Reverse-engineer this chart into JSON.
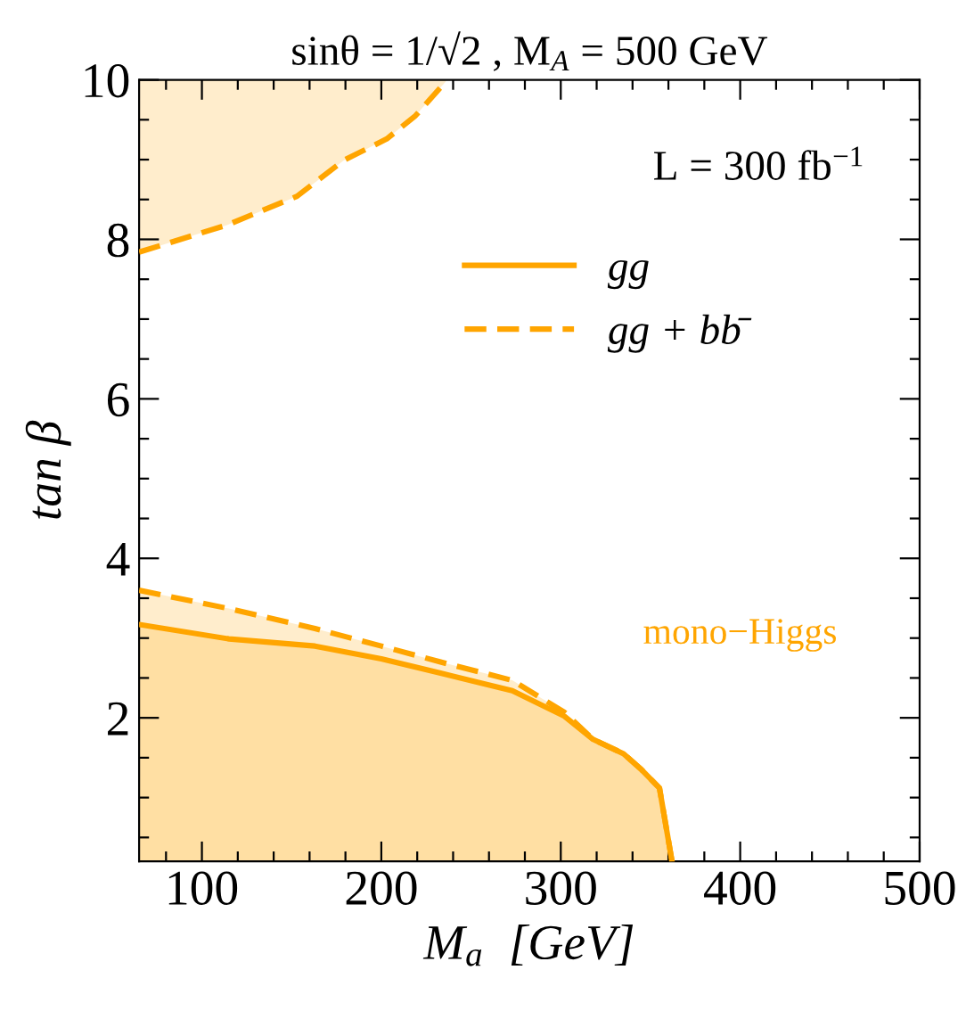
{
  "chart_data": {
    "type": "area",
    "title": "sinθ = 1/√2 , M$_{A}$ = 500 GeV",
    "xlabel": "M$_{a}$  [GeV]",
    "ylabel": "tan β",
    "series": [
      {
        "type": "line",
        "color": "#ffa500",
        "line_style": "dashed",
        "x": [
          65,
          114,
          153,
          179,
          203,
          219,
          236
        ],
        "values": [
          7.84,
          8.18,
          8.54,
          8.99,
          9.26,
          9.55,
          9.98
        ],
        "lower": [
          7.84,
          8.18,
          8.54,
          8.99,
          9.26,
          9.55,
          9.98
        ],
        "upper": [
          10,
          10,
          10,
          10,
          10,
          10,
          10
        ]
      },
      {
        "name": "gg + bb̄",
        "color": "#ffa500",
        "line_style": "dashed",
        "x": [
          65,
          115,
          163,
          200,
          233,
          273,
          302,
          318,
          335,
          345,
          355,
          362
        ],
        "values": [
          3.6,
          3.37,
          3.12,
          2.9,
          2.7,
          2.47,
          2.07,
          1.73,
          1.55,
          1.35,
          1.12,
          0.2
        ]
      },
      {
        "name": "gg",
        "color": "#ffa500",
        "line_style": "solid",
        "x": [
          65,
          115,
          163,
          200,
          233,
          273,
          302,
          318,
          335,
          345,
          355,
          362
        ],
        "values": [
          3.17,
          2.99,
          2.9,
          2.74,
          2.56,
          2.34,
          2.02,
          1.73,
          1.55,
          1.35,
          1.12,
          0.2
        ]
      }
    ],
    "annotations": [
      "L = 300 fb$^{−1}$",
      "mono−Higgs"
    ],
    "xlim": [
      65,
      500
    ],
    "ylim": [
      0.2,
      10
    ],
    "xticks": [
      {
        "value": 80,
        "label": null
      },
      100,
      {
        "value": 120,
        "label": null
      },
      {
        "value": 140,
        "label": null
      },
      {
        "value": 160,
        "label": null
      },
      {
        "value": 180,
        "label": null
      },
      200,
      {
        "value": 220,
        "label": null
      },
      {
        "value": 240,
        "label": null
      },
      {
        "value": 260,
        "label": null
      },
      {
        "value": 280,
        "label": null
      },
      300,
      {
        "value": 320,
        "label": null
      },
      {
        "value": 340,
        "label": null
      },
      {
        "value": 360,
        "label": null
      },
      {
        "value": 380,
        "label": null
      },
      400,
      {
        "value": 420,
        "label": null
      },
      {
        "value": 440,
        "label": null
      },
      {
        "value": 460,
        "label": null
      },
      {
        "value": 480,
        "label": null
      },
      500
    ],
    "yticks": [
      {
        "value": 0.5,
        "label": null
      },
      {
        "value": 1,
        "label": null
      },
      {
        "value": 1.5,
        "label": null
      },
      2,
      {
        "value": 2.5,
        "label": null
      },
      {
        "value": 3,
        "label": null
      },
      {
        "value": 3.5,
        "label": null
      },
      4,
      {
        "value": 4.5,
        "label": null
      },
      {
        "value": 5,
        "label": null
      },
      {
        "value": 5.5,
        "label": null
      },
      6,
      {
        "value": 6.5,
        "label": null
      },
      {
        "value": 7,
        "label": null
      },
      {
        "value": 7.5,
        "label": null
      },
      8,
      {
        "value": 8.5,
        "label": null
      },
      {
        "value": 9,
        "label": null
      },
      {
        "value": 9.5,
        "label": null
      },
      10
    ],
    "legend": "top right",
    "grid": false
  }
}
